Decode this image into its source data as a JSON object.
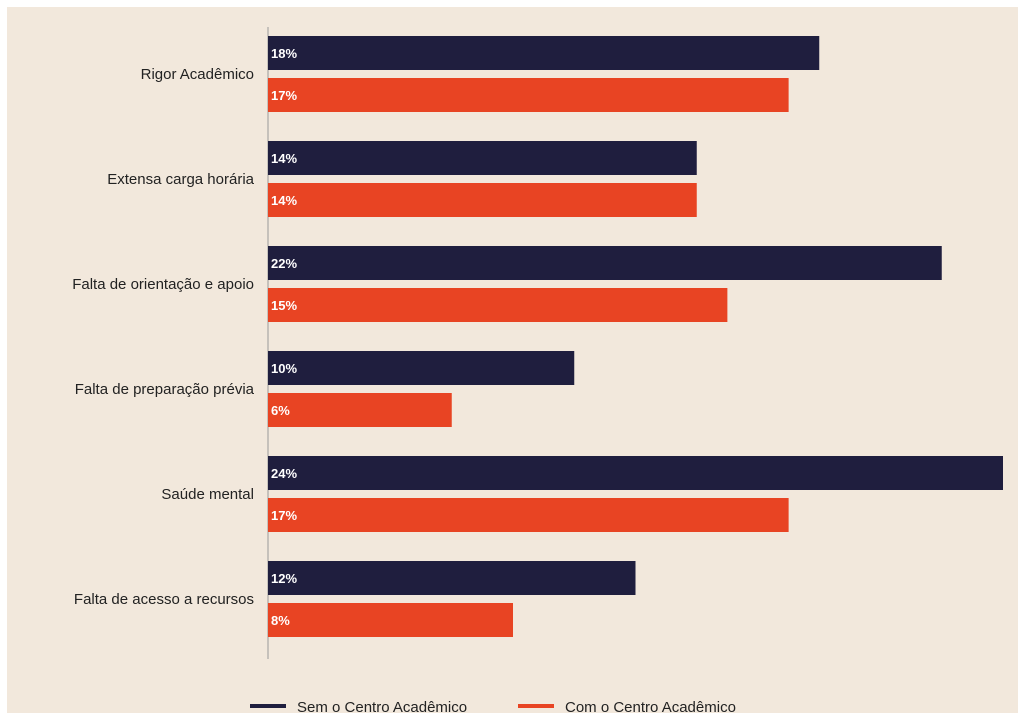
{
  "chart_data": {
    "type": "bar",
    "orientation": "horizontal",
    "categories": [
      "Rigor Acadêmico",
      "Extensa carga horária",
      "Falta de orientação e apoio",
      "Falta de preparação prévia",
      "Saúde mental",
      "Falta de acesso a recursos"
    ],
    "series": [
      {
        "name": "Sem o Centro Acadêmico",
        "color": "#1f1e3e",
        "values": [
          18,
          14,
          22,
          10,
          24,
          12
        ],
        "labels": [
          "18%",
          "14%",
          "22%",
          "10%",
          "24%",
          "12%"
        ]
      },
      {
        "name": "Com o Centro Acadêmico",
        "color": "#e84423",
        "values": [
          17,
          14,
          15,
          6,
          17,
          8
        ],
        "labels": [
          "17%",
          "14%",
          "15%",
          "6%",
          "17%",
          "8%"
        ]
      }
    ],
    "xlim": [
      0,
      24
    ],
    "grid": false,
    "legend_position": "bottom",
    "background": "#f2e8dc"
  }
}
